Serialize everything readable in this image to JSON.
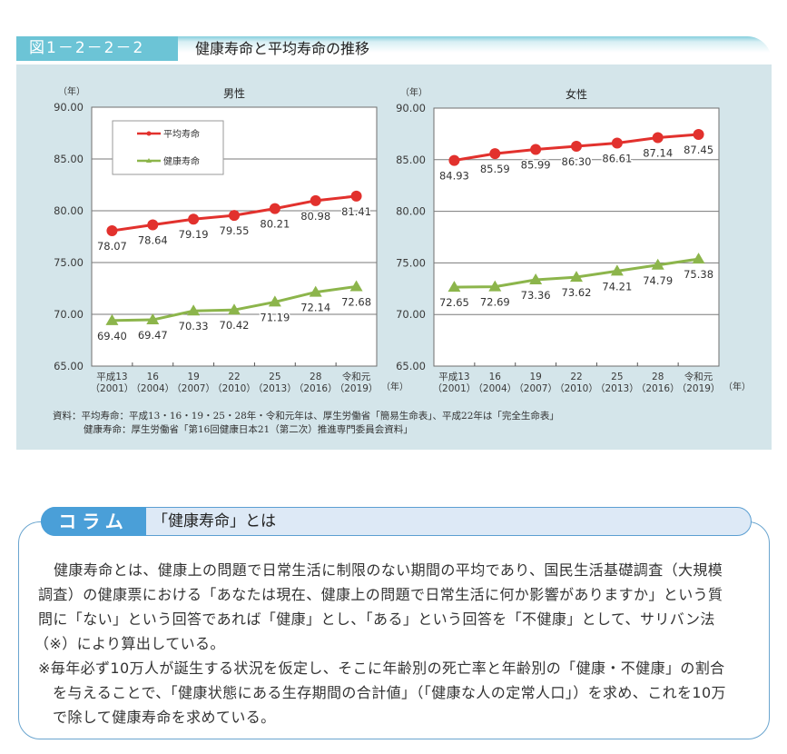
{
  "figure": {
    "label": "図1－2－2－2",
    "title": "健康寿命と平均寿命の推移"
  },
  "chart_data": [
    {
      "type": "line",
      "title": "男性",
      "ylabel": "（年）",
      "xlabel": "（年）",
      "ylim": [
        65,
        90
      ],
      "yticks": [
        65,
        70,
        75,
        80,
        85,
        90
      ],
      "ytick_labels": [
        "65.00",
        "70.00",
        "75.00",
        "80.00",
        "85.00",
        "90.00"
      ],
      "grid": true,
      "legend": "top-left",
      "categories": [
        {
          "era": "平成13",
          "year": "（2001）"
        },
        {
          "era": "16",
          "year": "（2004）"
        },
        {
          "era": "19",
          "year": "（2007）"
        },
        {
          "era": "22",
          "year": "（2010）"
        },
        {
          "era": "25",
          "year": "（2013）"
        },
        {
          "era": "28",
          "year": "（2016）"
        },
        {
          "era": "令和元",
          "year": "（2019）"
        }
      ],
      "series": [
        {
          "name": "平均寿命",
          "color": "#e2312d",
          "marker": "circle",
          "values": [
            78.07,
            78.64,
            79.19,
            79.55,
            80.21,
            80.98,
            81.41
          ],
          "data_labels": [
            "78.07",
            "78.64",
            "79.19",
            "79.55",
            "80.21",
            "80.98",
            "81.41"
          ]
        },
        {
          "name": "健康寿命",
          "color": "#8cb54b",
          "marker": "triangle",
          "values": [
            69.4,
            69.47,
            70.33,
            70.42,
            71.19,
            72.14,
            72.68
          ],
          "data_labels": [
            "69.40",
            "69.47",
            "70.33",
            "70.42",
            "71.19",
            "72.14",
            "72.68"
          ]
        }
      ]
    },
    {
      "type": "line",
      "title": "女性",
      "ylabel": "（年）",
      "xlabel": "（年）",
      "ylim": [
        65,
        90
      ],
      "yticks": [
        65,
        70,
        75,
        80,
        85,
        90
      ],
      "ytick_labels": [
        "65.00",
        "70.00",
        "75.00",
        "80.00",
        "85.00",
        "90.00"
      ],
      "grid": true,
      "legend": "none",
      "categories": [
        {
          "era": "平成13",
          "year": "（2001）"
        },
        {
          "era": "16",
          "year": "（2004）"
        },
        {
          "era": "19",
          "year": "（2007）"
        },
        {
          "era": "22",
          "year": "（2010）"
        },
        {
          "era": "25",
          "year": "（2013）"
        },
        {
          "era": "28",
          "year": "（2016）"
        },
        {
          "era": "令和元",
          "year": "（2019）"
        }
      ],
      "series": [
        {
          "name": "平均寿命",
          "color": "#e2312d",
          "marker": "circle",
          "values": [
            84.93,
            85.59,
            85.99,
            86.3,
            86.61,
            87.14,
            87.45
          ],
          "data_labels": [
            "84.93",
            "85.59",
            "85.99",
            "86.30",
            "86.61",
            "87.14",
            "87.45"
          ]
        },
        {
          "name": "健康寿命",
          "color": "#8cb54b",
          "marker": "triangle",
          "values": [
            72.65,
            72.69,
            73.36,
            73.62,
            74.21,
            74.79,
            75.38
          ],
          "data_labels": [
            "72.65",
            "72.69",
            "73.36",
            "73.62",
            "74.21",
            "74.79",
            "75.38"
          ]
        }
      ]
    }
  ],
  "source": {
    "prefix": "資料：",
    "lines": [
      "平均寿命：平成13・16・19・25・28年・令和元年は、厚生労働省「簡易生命表」、平成22年は「完全生命表」",
      "健康寿命：厚生労働省「第16回健康日本21（第二次）推進専門委員会資料」"
    ]
  },
  "column": {
    "badge": "コラム",
    "title": "「健康寿命」とは",
    "paragraph_lines": [
      "健康寿命とは、健康上の問題で日常生活に制限のない期間の平均であり、国民生活基礎調査（大規模",
      "調査）の健康票における「あなたは現在、健康上の問題で日常生活に何か影響がありますか」という質",
      "問に「ない」という回答であれば「健康」とし、「ある」という回答を「不健康」として、サリバン法",
      "（※）により算出している。"
    ],
    "note_lines": [
      "※毎年必ず10万人が誕生する状況を仮定し、そこに年齢別の死亡率と年齢別の「健康・不健康」の割合",
      "を与えることで、「健康状態にある生存期間の合計値」（「健康な人の定常人口」）を求め、これを10万",
      "で除して健康寿命を求めている。"
    ]
  },
  "colors": {
    "figure_label_bg": "#6cc4d6",
    "panel_bg": "#d4e5ea",
    "column_badge_bg": "#4a9fd8",
    "column_border": "#6aa5cf"
  }
}
